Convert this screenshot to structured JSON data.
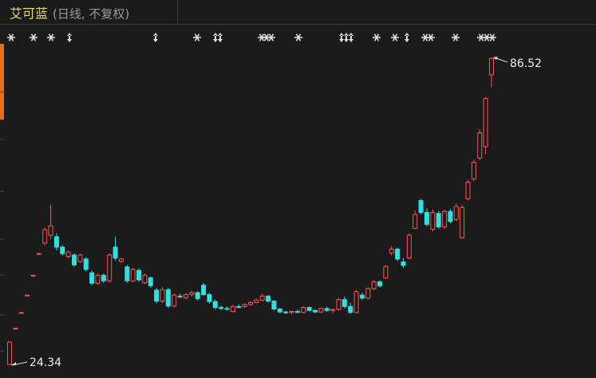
{
  "chart_data": {
    "type": "candlestick",
    "title": "艾可蓝",
    "subtitle": "(日线, 不复权)",
    "up_color": "#ff5454",
    "down_color": "#33e0e0",
    "ylim": [
      21.76,
      93.29
    ],
    "high_annotation": 86.52,
    "low_annotation": 24.34,
    "open": [
      24.5,
      31.7,
      34.9,
      38.4,
      42.4,
      46.8,
      49.0,
      50.6,
      50.3,
      48.2,
      46.3,
      46.6,
      45.3,
      45.8,
      43.0,
      40.9,
      42.5,
      41.4,
      48.2,
      45.3,
      44.2,
      41.4,
      43.5,
      41.0,
      42.0,
      39.5,
      37.3,
      39.6,
      36.3,
      38.3,
      38.0,
      38.6,
      39.0,
      40.5,
      38.6,
      37.2,
      36.0,
      35.8,
      35.2,
      36.2,
      36.2,
      36.6,
      37.0,
      37.5,
      38.3,
      37.3,
      35.7,
      35.1,
      35.0,
      35.2,
      35.0,
      36.0,
      35.4,
      35.1,
      35.8,
      35.4,
      35.6,
      37.6,
      36.2,
      35.0,
      38.5,
      37.9,
      39.8,
      41.2,
      42.0,
      47.0,
      47.8,
      45.2,
      46.0,
      52.0,
      57.6,
      55.2,
      51.8,
      55.0,
      52.3,
      55.4,
      53.8,
      50.1,
      58.0,
      62.0,
      66.2,
      68.5,
      83.0
    ],
    "high": [
      29.2,
      31.9,
      35.1,
      38.6,
      42.6,
      47.0,
      52.2,
      56.8,
      51.0,
      48.6,
      47.5,
      47.0,
      46.9,
      46.2,
      43.5,
      42.8,
      42.9,
      47.0,
      50.3,
      46.0,
      44.6,
      44.0,
      43.9,
      42.9,
      42.3,
      40.0,
      40.1,
      40.0,
      38.8,
      38.8,
      38.9,
      39.4,
      39.3,
      41.0,
      39.0,
      37.6,
      36.4,
      36.2,
      36.5,
      36.6,
      36.8,
      37.3,
      37.8,
      38.8,
      38.5,
      37.5,
      35.9,
      35.3,
      35.4,
      35.6,
      36.3,
      36.2,
      35.6,
      36.0,
      36.2,
      35.8,
      37.9,
      38.2,
      37.0,
      39.6,
      39.0,
      40.1,
      41.5,
      41.5,
      44.6,
      48.4,
      48.1,
      46.0,
      51.0,
      55.6,
      58.0,
      56.0,
      55.8,
      55.5,
      55.8,
      55.9,
      57.0,
      56.8,
      61.8,
      65.8,
      72.0,
      78.6,
      86.52
    ],
    "low": [
      24.34,
      31.6,
      34.8,
      38.3,
      42.3,
      46.7,
      48.5,
      49.8,
      47.5,
      46.5,
      45.9,
      44.2,
      45.0,
      43.3,
      40.5,
      40.6,
      41.0,
      41.0,
      45.5,
      45.0,
      41.0,
      41.1,
      41.2,
      40.7,
      40.0,
      36.8,
      36.9,
      35.9,
      36.0,
      37.9,
      37.6,
      38.2,
      37.4,
      38.3,
      36.8,
      35.6,
      35.5,
      35.4,
      35.0,
      35.9,
      35.9,
      36.3,
      36.8,
      37.2,
      37.0,
      35.4,
      34.8,
      34.7,
      34.6,
      34.9,
      34.8,
      35.2,
      34.9,
      34.9,
      35.1,
      34.9,
      35.4,
      35.8,
      34.7,
      34.8,
      37.5,
      37.6,
      39.5,
      40.0,
      41.8,
      46.5,
      45.4,
      44.0,
      45.7,
      51.8,
      54.8,
      52.4,
      51.4,
      51.9,
      51.9,
      53.0,
      53.4,
      49.9,
      57.6,
      61.5,
      65.8,
      67.0,
      80.5
    ],
    "close": [
      29.0,
      31.8,
      35.0,
      38.5,
      42.5,
      46.9,
      51.7,
      52.5,
      48.2,
      46.9,
      47.2,
      44.6,
      46.6,
      43.7,
      40.9,
      42.5,
      41.4,
      46.6,
      46.0,
      45.8,
      41.4,
      43.7,
      41.6,
      42.5,
      40.4,
      37.3,
      39.6,
      36.3,
      38.5,
      38.2,
      38.6,
      39.0,
      37.8,
      38.6,
      37.2,
      36.0,
      35.8,
      35.7,
      36.2,
      36.0,
      36.6,
      37.0,
      37.5,
      38.3,
      37.3,
      35.7,
      35.1,
      35.0,
      35.2,
      35.0,
      36.0,
      35.4,
      35.1,
      35.8,
      35.4,
      35.6,
      37.6,
      36.2,
      35.0,
      39.2,
      37.9,
      39.8,
      41.2,
      40.4,
      44.3,
      47.8,
      45.8,
      44.5,
      50.6,
      54.8,
      55.2,
      52.8,
      55.2,
      52.3,
      55.4,
      53.4,
      56.4,
      56.2,
      61.3,
      65.3,
      71.3,
      78.2,
      86.3
    ]
  }
}
